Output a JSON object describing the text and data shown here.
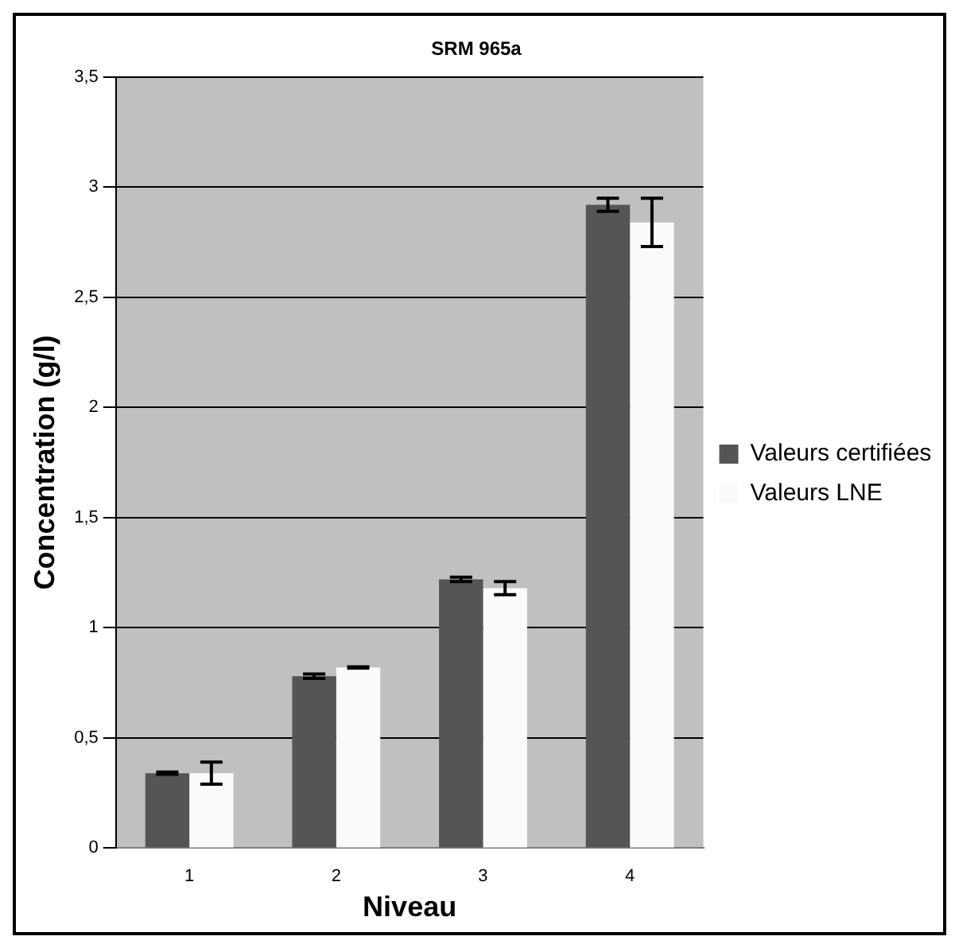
{
  "chart_data": {
    "type": "bar",
    "title": "SRM 965a",
    "xlabel": "Niveau",
    "ylabel": "Concentration (g/l)",
    "categories": [
      "1",
      "2",
      "3",
      "4"
    ],
    "series": [
      {
        "name": "Valeurs certifiées",
        "color": "#555555",
        "values": [
          0.34,
          0.78,
          1.22,
          2.92
        ],
        "errors": [
          0.005,
          0.01,
          0.01,
          0.03
        ]
      },
      {
        "name": "Valeurs LNE",
        "color": "#fafafa",
        "values": [
          0.34,
          0.82,
          1.18,
          2.84
        ],
        "errors": [
          0.05,
          0.003,
          0.03,
          0.11
        ]
      }
    ],
    "ylim": [
      0,
      3.5
    ],
    "yticks": [
      0,
      {
        "value": 0.5,
        "label": "0,5"
      },
      1,
      {
        "value": 1.5,
        "label": "1,5"
      },
      2,
      {
        "value": 2.5,
        "label": "2,5"
      },
      3,
      {
        "value": 3.5,
        "label": "3,5"
      }
    ],
    "grid": "y",
    "legend": "right"
  }
}
